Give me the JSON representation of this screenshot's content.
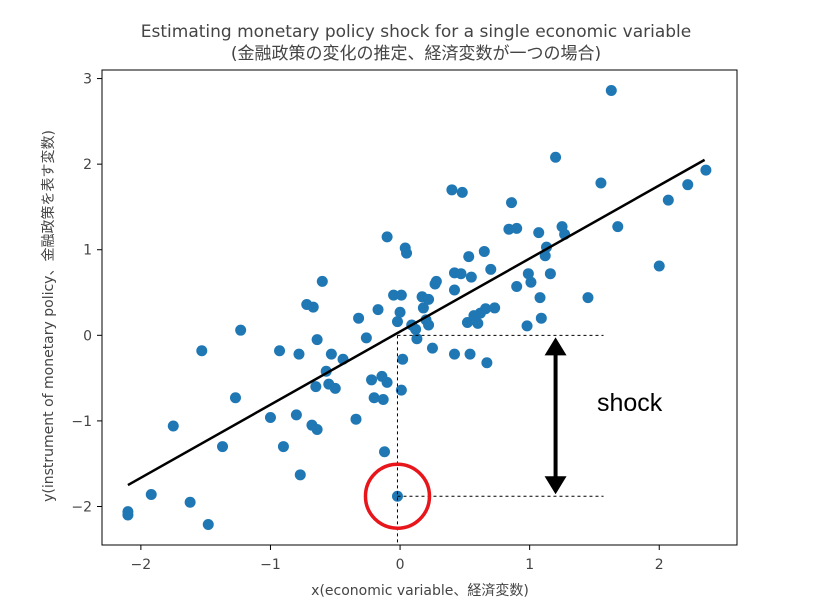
{
  "chart_data": {
    "type": "scatter",
    "title": "Estimating monetary policy shock for a single economic variable",
    "subtitle": "(金融政策の変化の推定、経済変数が一つの場合)",
    "xlabel": "x(economic variable、経済変数)",
    "ylabel": "y(instrument of monetary policy、金融政策を表す変数)",
    "xlim": [
      -2.3,
      2.6
    ],
    "ylim": [
      -2.45,
      3.1
    ],
    "x_ticks": [
      -2,
      -1,
      0,
      1,
      2
    ],
    "x_tick_labels": [
      "−2",
      "−1",
      "0",
      "1",
      "2"
    ],
    "y_ticks": [
      -2,
      -1,
      0,
      1,
      2,
      3
    ],
    "y_tick_labels": [
      "−2",
      "−1",
      "0",
      "1",
      "2",
      "3"
    ],
    "grid": false,
    "point_color": "#1f77b4",
    "line_color": "#000000",
    "highlight_color": "#e8161b",
    "regression_line": {
      "x": [
        -2.1,
        2.35
      ],
      "y": [
        -1.75,
        2.05
      ]
    },
    "points": [
      [
        -2.1,
        -2.1
      ],
      [
        -2.1,
        -2.06
      ],
      [
        -1.92,
        -1.86
      ],
      [
        -1.75,
        -1.06
      ],
      [
        -1.62,
        -1.95
      ],
      [
        -1.53,
        -0.18
      ],
      [
        -1.48,
        -2.21
      ],
      [
        -1.37,
        -1.3
      ],
      [
        -1.27,
        -0.73
      ],
      [
        -1.23,
        0.06
      ],
      [
        -1.0,
        -0.96
      ],
      [
        -0.93,
        -0.18
      ],
      [
        -0.9,
        -1.3
      ],
      [
        -0.8,
        -0.93
      ],
      [
        -0.78,
        -0.22
      ],
      [
        -0.77,
        -1.63
      ],
      [
        -0.72,
        0.36
      ],
      [
        -0.68,
        -1.05
      ],
      [
        -0.67,
        0.33
      ],
      [
        -0.65,
        -0.6
      ],
      [
        -0.64,
        -0.05
      ],
      [
        -0.64,
        -1.1
      ],
      [
        -0.6,
        0.63
      ],
      [
        -0.57,
        -0.42
      ],
      [
        -0.55,
        -0.57
      ],
      [
        -0.53,
        -0.22
      ],
      [
        -0.5,
        -0.62
      ],
      [
        -0.44,
        -0.28
      ],
      [
        -0.34,
        -0.98
      ],
      [
        -0.32,
        0.2
      ],
      [
        -0.26,
        -0.03
      ],
      [
        -0.22,
        -0.52
      ],
      [
        -0.2,
        -0.73
      ],
      [
        -0.17,
        0.3
      ],
      [
        -0.14,
        -0.48
      ],
      [
        -0.13,
        -0.75
      ],
      [
        -0.12,
        -1.36
      ],
      [
        -0.1,
        1.15
      ],
      [
        -0.1,
        -0.55
      ],
      [
        -0.05,
        0.47
      ],
      [
        -0.02,
        0.16
      ],
      [
        0.0,
        0.27
      ],
      [
        0.01,
        0.47
      ],
      [
        0.01,
        -0.64
      ],
      [
        0.02,
        -0.28
      ],
      [
        0.04,
        1.02
      ],
      [
        0.05,
        0.96
      ],
      [
        0.09,
        0.12
      ],
      [
        0.12,
        0.07
      ],
      [
        0.13,
        -0.04
      ],
      [
        0.17,
        0.45
      ],
      [
        0.18,
        0.32
      ],
      [
        0.2,
        0.18
      ],
      [
        0.22,
        0.12
      ],
      [
        0.22,
        0.42
      ],
      [
        0.25,
        -0.15
      ],
      [
        0.27,
        0.6
      ],
      [
        0.28,
        0.63
      ],
      [
        0.4,
        1.7
      ],
      [
        0.42,
        0.53
      ],
      [
        0.42,
        0.73
      ],
      [
        0.42,
        -0.22
      ],
      [
        0.47,
        0.72
      ],
      [
        0.48,
        1.67
      ],
      [
        0.52,
        0.15
      ],
      [
        0.53,
        0.92
      ],
      [
        0.54,
        -0.22
      ],
      [
        0.55,
        0.68
      ],
      [
        0.57,
        0.23
      ],
      [
        0.6,
        0.14
      ],
      [
        0.62,
        0.26
      ],
      [
        0.65,
        0.98
      ],
      [
        0.66,
        0.31
      ],
      [
        0.67,
        -0.32
      ],
      [
        0.7,
        0.77
      ],
      [
        0.73,
        0.32
      ],
      [
        0.84,
        1.24
      ],
      [
        0.86,
        1.55
      ],
      [
        0.9,
        1.25
      ],
      [
        0.9,
        0.57
      ],
      [
        0.98,
        0.11
      ],
      [
        0.99,
        0.72
      ],
      [
        1.01,
        0.62
      ],
      [
        1.07,
        1.2
      ],
      [
        1.08,
        0.44
      ],
      [
        1.09,
        0.2
      ],
      [
        1.12,
        0.93
      ],
      [
        1.13,
        1.03
      ],
      [
        1.16,
        0.72
      ],
      [
        1.2,
        2.08
      ],
      [
        1.25,
        1.27
      ],
      [
        1.27,
        1.18
      ],
      [
        1.45,
        0.44
      ],
      [
        1.55,
        1.78
      ],
      [
        1.63,
        2.86
      ],
      [
        1.68,
        1.27
      ],
      [
        2.0,
        0.81
      ],
      [
        2.07,
        1.58
      ],
      [
        2.22,
        1.76
      ],
      [
        2.36,
        1.93
      ]
    ],
    "highlight_point": [
      -0.02,
      -1.88
    ],
    "annotation": {
      "label": "shock",
      "point_x": -0.02,
      "fitted_y": 0.0,
      "actual_y": -1.88,
      "right_x": 1.57,
      "arrow_x": 1.2
    }
  }
}
